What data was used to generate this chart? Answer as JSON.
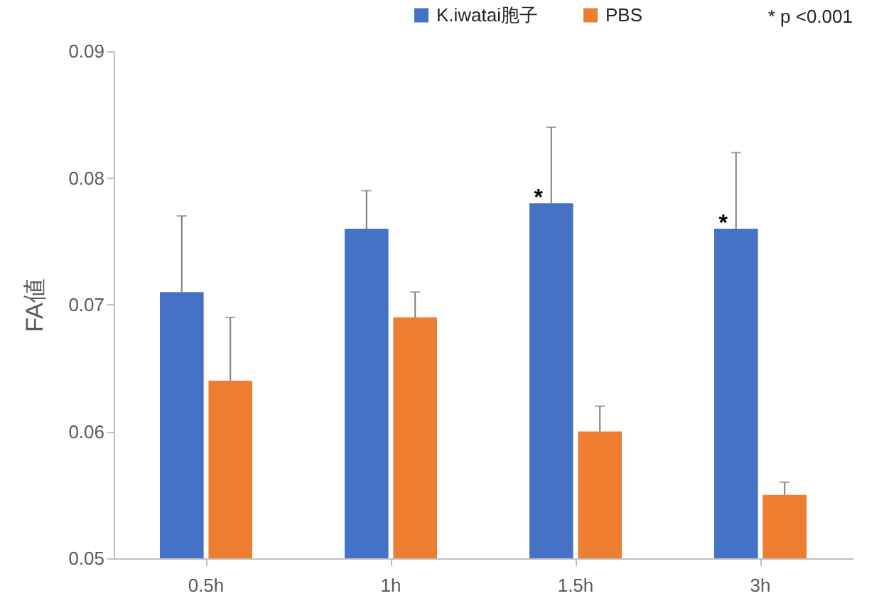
{
  "chart_data": {
    "type": "bar",
    "ylabel": "FA値",
    "categories": [
      "0.5h",
      "1h",
      "1.5h",
      "3h"
    ],
    "series": [
      {
        "name": "K.iwatai胞子",
        "color": "#4472c4",
        "values": [
          0.071,
          0.076,
          0.078,
          0.076
        ],
        "errors": [
          [
            0.071,
            0.077
          ],
          [
            0.076,
            0.079
          ],
          [
            0.078,
            0.084
          ],
          [
            0.076,
            0.082
          ]
        ]
      },
      {
        "name": "PBS",
        "color": "#ed7d31",
        "values": [
          0.064,
          0.069,
          0.06,
          0.055
        ],
        "errors": [
          [
            0.064,
            0.069
          ],
          [
            0.069,
            0.071
          ],
          [
            0.06,
            0.062
          ],
          [
            0.055,
            0.056
          ]
        ]
      }
    ],
    "ylim": [
      0.05,
      0.09
    ],
    "yticks": [
      0.05,
      0.06,
      0.07,
      0.08,
      0.09
    ],
    "grid": false,
    "legend": "top right",
    "annotations": [
      {
        "text": "*",
        "x": "1.5h",
        "y": 0.078
      },
      {
        "text": "*",
        "x": "3h",
        "y": 0.076
      },
      "* p <0.001"
    ]
  }
}
